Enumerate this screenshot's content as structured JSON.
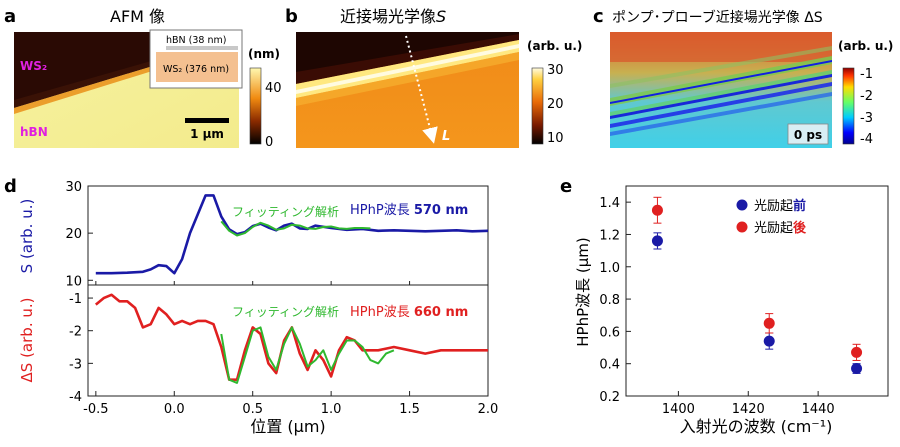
{
  "panel_a": {
    "letter": "a",
    "title": "AFM 像",
    "label_ws2": "WS₂",
    "label_hbn": "hBN",
    "inset_top": "hBN (38 nm)",
    "inset_bottom": "WS₂ (376 nm)",
    "scalebar": "1 μm",
    "cbar_unit": "(nm)",
    "cbar_ticks": [
      "40",
      "0"
    ]
  },
  "panel_b": {
    "letter": "b",
    "title_prefix": "近接場光学像",
    "title_var": "S",
    "arrow_label": "L",
    "cbar_unit": "(arb. u.)",
    "cbar_ticks": [
      "30",
      "20",
      "10"
    ]
  },
  "panel_c": {
    "letter": "c",
    "title": "ポンプ･プローブ近接場光学像 ΔS",
    "time_label": "0 ps",
    "cbar_unit": "(arb. u.)",
    "cbar_ticks": [
      "-1",
      "-2",
      "-3",
      "-4"
    ]
  },
  "panel_d": {
    "letter": "d",
    "xlabel": "位置 (μm)",
    "top_ylabel": "S (arb. u.)",
    "bottom_ylabel": "ΔS (arb. u.)",
    "top_fit_label": "フィッティング解析",
    "top_wl_prefix": "HPhP波長 ",
    "top_wl_value": "570 nm",
    "bottom_fit_label": "フィッティング解析",
    "bottom_wl_prefix": "HPhP波長 ",
    "bottom_wl_value": "660 nm",
    "x_ticks": [
      "-0.5",
      "0.0",
      "0.5",
      "1.0",
      "1.5",
      "2.0"
    ],
    "top_y_ticks": [
      "30",
      "20",
      "10"
    ],
    "bottom_y_ticks": [
      "-1",
      "-2",
      "-3",
      "-4"
    ]
  },
  "panel_e": {
    "letter": "e",
    "xlabel": "入射光の波数 (cm⁻¹)",
    "ylabel": "HPhP波長 (μm)",
    "legend_before_prefix": "光励起",
    "legend_before_suffix": "前",
    "legend_after_prefix": "光励起",
    "legend_after_suffix": "後",
    "x_ticks": [
      "1400",
      "1420",
      "1440"
    ],
    "y_ticks": [
      "1.4",
      "1.2",
      "1.0",
      "0.8",
      "0.6",
      "0.4",
      "0.2"
    ]
  },
  "colors": {
    "before": "#1a1aa6",
    "after": "#e02020",
    "fit": "#2fb82f"
  },
  "chart_data": [
    {
      "type": "line",
      "panel": "d-top",
      "xlabel": "位置 (μm)",
      "ylabel": "S (arb. u.)",
      "xlim": [
        -0.55,
        2.0
      ],
      "ylim": [
        9,
        30
      ],
      "series": [
        {
          "name": "",
          "color": "#1a1aa6",
          "x": [
            -0.5,
            -0.4,
            -0.3,
            -0.2,
            -0.15,
            -0.1,
            -0.05,
            0.0,
            0.05,
            0.1,
            0.15,
            0.2,
            0.25,
            0.3,
            0.35,
            0.4,
            0.45,
            0.5,
            0.55,
            0.6,
            0.65,
            0.7,
            0.75,
            0.8,
            0.85,
            0.9,
            1.0,
            1.1,
            1.2,
            1.3,
            1.4,
            1.5,
            1.6,
            1.7,
            1.8,
            1.9,
            2.0
          ],
          "y": [
            11.5,
            11.5,
            11.6,
            11.8,
            12.3,
            13.2,
            13.0,
            11.5,
            14.5,
            20.0,
            24.0,
            28.0,
            28.0,
            23.5,
            20.8,
            19.8,
            20.2,
            21.5,
            22.0,
            21.2,
            20.6,
            21.6,
            22.0,
            21.0,
            20.9,
            21.6,
            21.1,
            20.7,
            20.9,
            20.5,
            20.6,
            20.5,
            20.4,
            20.5,
            20.6,
            20.4,
            20.5
          ]
        },
        {
          "name": "",
          "color": "#2fb82f",
          "x": [
            0.3,
            0.35,
            0.4,
            0.45,
            0.5,
            0.55,
            0.6,
            0.65,
            0.7,
            0.75,
            0.8,
            0.85,
            0.9,
            0.95,
            1.0,
            1.05,
            1.1,
            1.15,
            1.2,
            1.25
          ],
          "y": [
            22.5,
            20.5,
            19.5,
            20.0,
            21.3,
            22.2,
            21.6,
            20.7,
            21.0,
            21.8,
            21.6,
            21.0,
            20.9,
            21.3,
            21.4,
            21.0,
            20.9,
            21.1,
            21.1,
            21.0
          ]
        }
      ]
    },
    {
      "type": "line",
      "panel": "d-bottom",
      "xlabel": "位置 (μm)",
      "ylabel": "ΔS (arb. u.)",
      "xlim": [
        -0.55,
        2.0
      ],
      "ylim": [
        -4,
        -0.6
      ],
      "series": [
        {
          "name": "",
          "color": "#e02020",
          "x": [
            -0.5,
            -0.45,
            -0.4,
            -0.35,
            -0.3,
            -0.25,
            -0.2,
            -0.15,
            -0.1,
            -0.05,
            0.0,
            0.05,
            0.1,
            0.15,
            0.2,
            0.25,
            0.3,
            0.35,
            0.4,
            0.45,
            0.5,
            0.55,
            0.6,
            0.65,
            0.7,
            0.75,
            0.8,
            0.85,
            0.9,
            0.95,
            1.0,
            1.05,
            1.1,
            1.15,
            1.2,
            1.3,
            1.4,
            1.5,
            1.6,
            1.7,
            1.8,
            1.9,
            2.0
          ],
          "y": [
            -1.2,
            -1.0,
            -0.9,
            -1.1,
            -1.1,
            -1.3,
            -1.9,
            -1.8,
            -1.3,
            -1.5,
            -1.8,
            -1.7,
            -1.8,
            -1.7,
            -1.7,
            -1.8,
            -2.5,
            -3.5,
            -3.5,
            -2.6,
            -1.9,
            -2.1,
            -3.0,
            -3.3,
            -2.3,
            -1.9,
            -2.7,
            -3.2,
            -2.6,
            -2.9,
            -3.4,
            -2.6,
            -2.2,
            -2.3,
            -2.6,
            -2.6,
            -2.5,
            -2.6,
            -2.7,
            -2.6,
            -2.6,
            -2.6,
            -2.6
          ]
        },
        {
          "name": "",
          "color": "#2fb82f",
          "x": [
            0.3,
            0.35,
            0.4,
            0.45,
            0.5,
            0.55,
            0.6,
            0.65,
            0.7,
            0.75,
            0.8,
            0.85,
            0.9,
            0.95,
            1.0,
            1.05,
            1.1,
            1.15,
            1.2,
            1.25,
            1.3,
            1.35,
            1.4
          ],
          "y": [
            -2.1,
            -3.5,
            -3.6,
            -2.8,
            -2.0,
            -1.9,
            -2.8,
            -3.2,
            -2.4,
            -1.9,
            -2.4,
            -3.1,
            -2.9,
            -2.6,
            -3.2,
            -2.7,
            -2.3,
            -2.3,
            -2.5,
            -2.9,
            -3.0,
            -2.7,
            -2.6
          ]
        }
      ]
    },
    {
      "type": "scatter",
      "panel": "e",
      "xlabel": "入射光の波数 (cm⁻¹)",
      "ylabel": "HPhP波長 (μm)",
      "xlim": [
        1385,
        1460
      ],
      "ylim": [
        0.2,
        1.5
      ],
      "series": [
        {
          "name": "光励起前",
          "color": "#1a1aa6",
          "x": [
            1394,
            1426,
            1451
          ],
          "y": [
            1.16,
            0.54,
            0.37
          ],
          "err": [
            0.05,
            0.05,
            0.03
          ]
        },
        {
          "name": "光励起後",
          "color": "#e02020",
          "x": [
            1394,
            1426,
            1451
          ],
          "y": [
            1.35,
            0.65,
            0.47
          ],
          "err": [
            0.08,
            0.06,
            0.05
          ]
        }
      ]
    }
  ]
}
